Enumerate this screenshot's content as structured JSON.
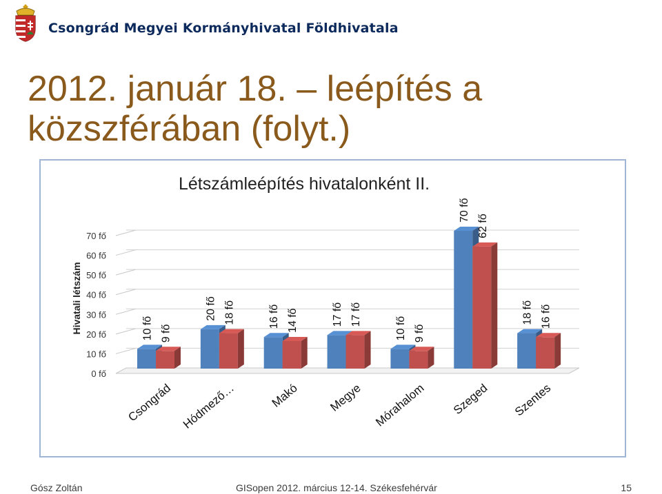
{
  "header": {
    "organization": "Csongrád Megyei Kormányhivatal Földhivatala"
  },
  "slide": {
    "title_line1": "2012. január 18. – leépítés a",
    "title_line2": "közszférában (folyt.)"
  },
  "chart_data": {
    "type": "bar",
    "title": "Létszámleépítés hivatalonként II.",
    "ylabel": "Hivatali létszám",
    "xlabel": "",
    "categories": [
      "Csongrád",
      "Hódmező…",
      "Makó",
      "Megye",
      "Mórahalom",
      "Szeged",
      "Szentes"
    ],
    "series": [
      {
        "values": [
          10,
          20,
          16,
          17,
          10,
          70,
          18
        ],
        "labels": [
          "10 fő",
          "20 fő",
          "16 fő",
          "17 fő",
          "10 fő",
          "70 fő",
          "18 fő"
        ]
      },
      {
        "values": [
          9,
          18,
          14,
          17,
          9,
          62,
          16
        ],
        "labels": [
          "9 fő",
          "18 fő",
          "14 fő",
          "17 fő",
          "9 fő",
          "62 fő",
          "16 fő"
        ]
      }
    ],
    "ylim": [
      0,
      70
    ],
    "yticks": [
      0,
      10,
      20,
      30,
      40,
      50,
      60,
      70
    ],
    "ytick_labels": [
      "0 fő",
      "10 fő",
      "20 fő",
      "30 fő",
      "40 fő",
      "50 fő",
      "60 fő",
      "70 fő"
    ],
    "grid": true,
    "legend": "none",
    "style": "3d-column",
    "colors": [
      "#4f81bd",
      "#c0504d"
    ]
  },
  "footer": {
    "author": "Gósz Zoltán",
    "event": "GISopen 2012. március 12-14. Székesfehérvár",
    "page": "15"
  }
}
